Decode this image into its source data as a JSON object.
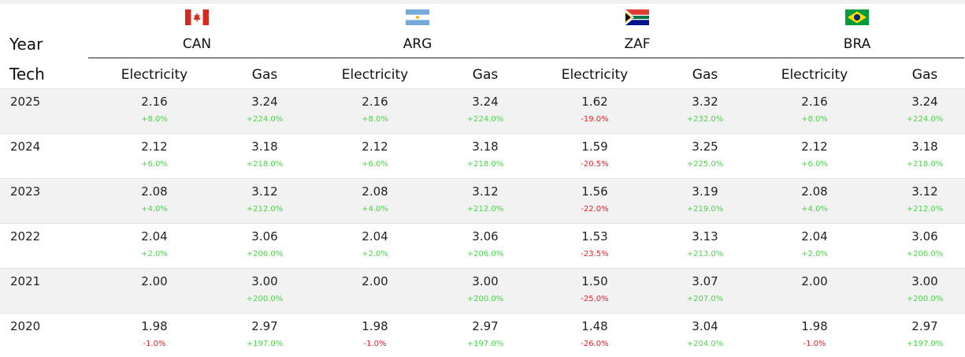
{
  "row_header_label": "Year",
  "column_header_label": "Tech",
  "countries": [
    {
      "code": "CAN",
      "flag_icon": "canada-flag-icon"
    },
    {
      "code": "ARG",
      "flag_icon": "argentina-flag-icon"
    },
    {
      "code": "ZAF",
      "flag_icon": "south-africa-flag-icon"
    },
    {
      "code": "BRA",
      "flag_icon": "brazil-flag-icon"
    }
  ],
  "techs": [
    "Electricity",
    "Gas"
  ],
  "colors": {
    "positive": "#4cd44c",
    "negative": "#e8202a",
    "shade": "#f2f2f2"
  },
  "chart_data": {
    "type": "table",
    "rows": [
      {
        "year": "2025",
        "cells": [
          {
            "value": "2.16",
            "change": "+8.0%"
          },
          {
            "value": "3.24",
            "change": "+224.0%"
          },
          {
            "value": "2.16",
            "change": "+8.0%"
          },
          {
            "value": "3.24",
            "change": "+224.0%"
          },
          {
            "value": "1.62",
            "change": "-19.0%"
          },
          {
            "value": "3.32",
            "change": "+232.0%"
          },
          {
            "value": "2.16",
            "change": "+8.0%"
          },
          {
            "value": "3.24",
            "change": "+224.0%"
          }
        ]
      },
      {
        "year": "2024",
        "cells": [
          {
            "value": "2.12",
            "change": "+6.0%"
          },
          {
            "value": "3.18",
            "change": "+218.0%"
          },
          {
            "value": "2.12",
            "change": "+6.0%"
          },
          {
            "value": "3.18",
            "change": "+218.0%"
          },
          {
            "value": "1.59",
            "change": "-20.5%"
          },
          {
            "value": "3.25",
            "change": "+225.0%"
          },
          {
            "value": "2.12",
            "change": "+6.0%"
          },
          {
            "value": "3.18",
            "change": "+218.0%"
          }
        ]
      },
      {
        "year": "2023",
        "cells": [
          {
            "value": "2.08",
            "change": "+4.0%"
          },
          {
            "value": "3.12",
            "change": "+212.0%"
          },
          {
            "value": "2.08",
            "change": "+4.0%"
          },
          {
            "value": "3.12",
            "change": "+212.0%"
          },
          {
            "value": "1.56",
            "change": "-22.0%"
          },
          {
            "value": "3.19",
            "change": "+219.0%"
          },
          {
            "value": "2.08",
            "change": "+4.0%"
          },
          {
            "value": "3.12",
            "change": "+212.0%"
          }
        ]
      },
      {
        "year": "2022",
        "cells": [
          {
            "value": "2.04",
            "change": "+2.0%"
          },
          {
            "value": "3.06",
            "change": "+206.0%"
          },
          {
            "value": "2.04",
            "change": "+2.0%"
          },
          {
            "value": "3.06",
            "change": "+206.0%"
          },
          {
            "value": "1.53",
            "change": "-23.5%"
          },
          {
            "value": "3.13",
            "change": "+213.0%"
          },
          {
            "value": "2.04",
            "change": "+2.0%"
          },
          {
            "value": "3.06",
            "change": "+206.0%"
          }
        ]
      },
      {
        "year": "2021",
        "cells": [
          {
            "value": "2.00",
            "change": ""
          },
          {
            "value": "3.00",
            "change": "+200.0%"
          },
          {
            "value": "2.00",
            "change": ""
          },
          {
            "value": "3.00",
            "change": "+200.0%"
          },
          {
            "value": "1.50",
            "change": "-25.0%"
          },
          {
            "value": "3.07",
            "change": "+207.0%"
          },
          {
            "value": "2.00",
            "change": ""
          },
          {
            "value": "3.00",
            "change": "+200.0%"
          }
        ]
      },
      {
        "year": "2020",
        "cells": [
          {
            "value": "1.98",
            "change": "-1.0%"
          },
          {
            "value": "2.97",
            "change": "+197.0%"
          },
          {
            "value": "1.98",
            "change": "-1.0%"
          },
          {
            "value": "2.97",
            "change": "+197.0%"
          },
          {
            "value": "1.48",
            "change": "-26.0%"
          },
          {
            "value": "3.04",
            "change": "+204.0%"
          },
          {
            "value": "1.98",
            "change": "-1.0%"
          },
          {
            "value": "2.97",
            "change": "+197.0%"
          }
        ]
      }
    ]
  }
}
